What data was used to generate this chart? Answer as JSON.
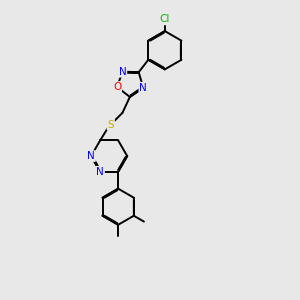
{
  "bg_color": "#e8e8e8",
  "bond_color": "#000000",
  "atom_colors": {
    "N": "#0000ff",
    "O": "#ff0000",
    "S": "#ccaa00",
    "Cl": "#00bb00",
    "C": "#000000"
  },
  "figsize": [
    3.0,
    3.0
  ],
  "dpi": 100
}
